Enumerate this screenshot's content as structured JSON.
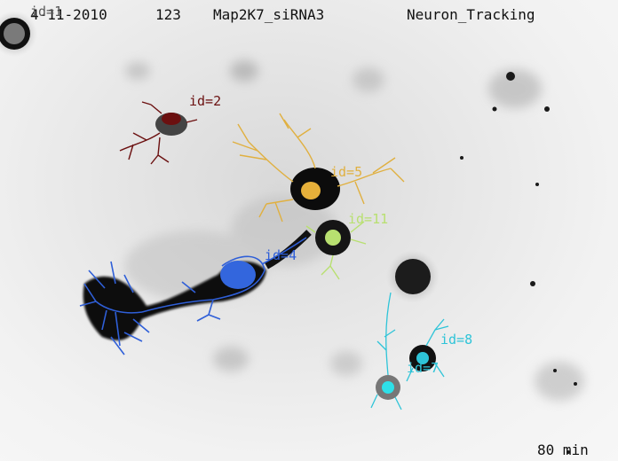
{
  "header": {
    "date": "4-11-2010",
    "count": "123",
    "condition": "Map2K7_siRNA3",
    "title": "Neuron_Tracking"
  },
  "footer": {
    "time": "80 min"
  },
  "neurons": [
    {
      "label": "id=1",
      "color": "#5a5a5a"
    },
    {
      "label": "id=2",
      "color": "#6b1010"
    },
    {
      "label": "id=4",
      "color": "#2f5fd8"
    },
    {
      "label": "id=5",
      "color": "#e0b040"
    },
    {
      "label": "id=7",
      "color": "#2ec4d8"
    },
    {
      "label": "id=8",
      "color": "#2ec4d8"
    },
    {
      "label": "id=11",
      "color": "#b8e070"
    }
  ]
}
